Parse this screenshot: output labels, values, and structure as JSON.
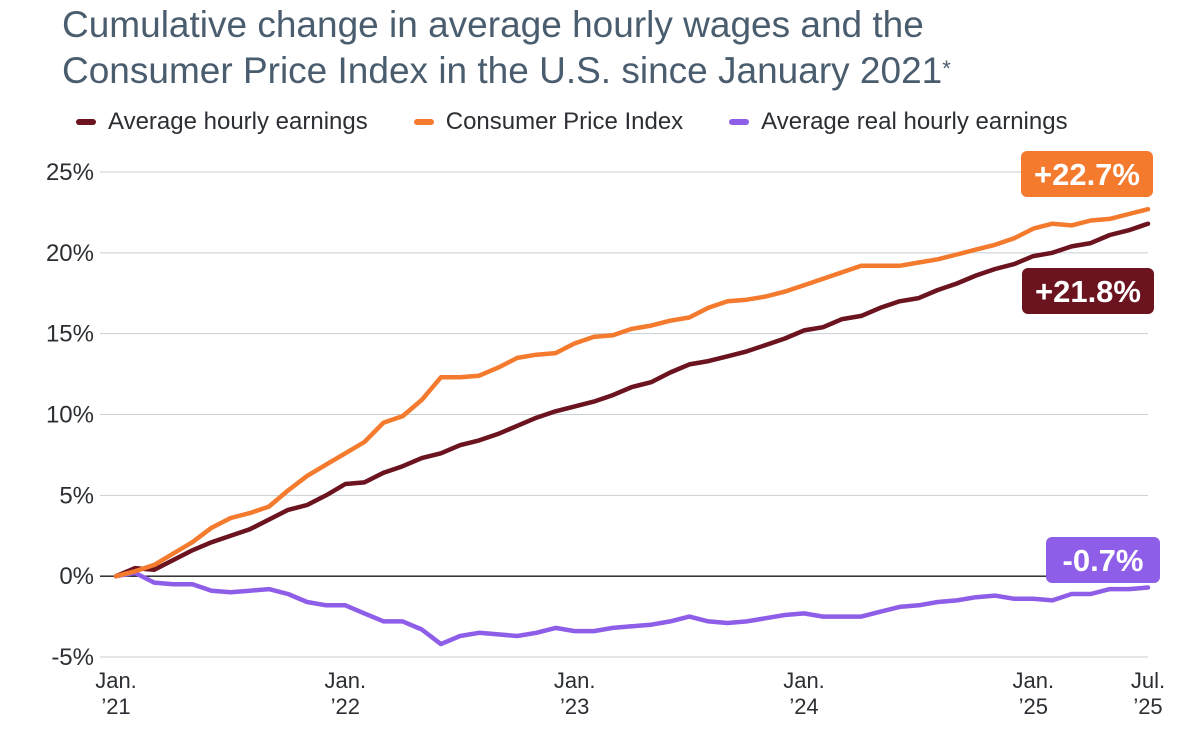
{
  "title_line1": "Cumulative change in average hourly wages and the",
  "title_line2": "Consumer Price Index in the U.S. since January 2021",
  "title_footnote_mark": "*",
  "chart_data": {
    "type": "line",
    "title": "Cumulative change in average hourly wages and the Consumer Price Index in the U.S. since January 2021*",
    "x_start": "2021-01",
    "x_end": "2025-07",
    "xlim": [
      "2021-01",
      "2025-07"
    ],
    "ylim": [
      -5,
      25
    ],
    "y_ticks": [
      "25%",
      "20%",
      "15%",
      "10%",
      "5%",
      "0%",
      "-5%"
    ],
    "y_tick_values": [
      25,
      20,
      15,
      10,
      5,
      0,
      -5
    ],
    "x_ticks": [
      {
        "month": "2021-01",
        "line1": "Jan.",
        "line2": "’21"
      },
      {
        "month": "2022-01",
        "line1": "Jan.",
        "line2": "’22"
      },
      {
        "month": "2023-01",
        "line1": "Jan.",
        "line2": "’23"
      },
      {
        "month": "2024-01",
        "line1": "Jan.",
        "line2": "’24"
      },
      {
        "month": "2025-01",
        "line1": "Jan.",
        "line2": "’25"
      },
      {
        "month": "2025-07",
        "line1": "Jul.",
        "line2": "’25"
      }
    ],
    "grid": true,
    "legend_position": "top-left",
    "series": [
      {
        "name": "Average hourly earnings",
        "color": "#6b1420",
        "end_label": "+21.8%",
        "values": [
          0,
          0.5,
          0.4,
          1.0,
          1.6,
          2.1,
          2.5,
          2.9,
          3.5,
          4.1,
          4.4,
          5.0,
          5.7,
          5.8,
          6.4,
          6.8,
          7.3,
          7.6,
          8.1,
          8.4,
          8.8,
          9.3,
          9.8,
          10.2,
          10.5,
          10.8,
          11.2,
          11.7,
          12.0,
          12.6,
          13.1,
          13.3,
          13.6,
          13.9,
          14.3,
          14.7,
          15.2,
          15.4,
          15.9,
          16.1,
          16.6,
          17.0,
          17.2,
          17.7,
          18.1,
          18.6,
          19.0,
          19.3,
          19.8,
          20.0,
          20.4,
          20.6,
          21.1,
          21.4,
          21.8
        ]
      },
      {
        "name": "Consumer Price Index",
        "color": "#f47a2e",
        "end_label": "+22.7%",
        "values": [
          0,
          0.3,
          0.7,
          1.4,
          2.1,
          3.0,
          3.6,
          3.9,
          4.3,
          5.3,
          6.2,
          6.9,
          7.6,
          8.3,
          9.5,
          9.9,
          10.9,
          12.3,
          12.3,
          12.4,
          12.9,
          13.5,
          13.7,
          13.8,
          14.4,
          14.8,
          14.9,
          15.3,
          15.5,
          15.8,
          16.0,
          16.6,
          17.0,
          17.1,
          17.3,
          17.6,
          18.0,
          18.4,
          18.8,
          19.2,
          19.2,
          19.2,
          19.4,
          19.6,
          19.9,
          20.2,
          20.5,
          20.9,
          21.5,
          21.8,
          21.7,
          22.0,
          22.1,
          22.4,
          22.7
        ]
      },
      {
        "name": "Average real hourly earnings",
        "color": "#8e5ee8",
        "end_label": "-0.7%",
        "values": [
          0,
          0.2,
          -0.4,
          -0.5,
          -0.5,
          -0.9,
          -1.0,
          -0.9,
          -0.8,
          -1.1,
          -1.6,
          -1.8,
          -1.8,
          -2.3,
          -2.8,
          -2.8,
          -3.3,
          -4.2,
          -3.7,
          -3.5,
          -3.6,
          -3.7,
          -3.5,
          -3.2,
          -3.4,
          -3.4,
          -3.2,
          -3.1,
          -3.0,
          -2.8,
          -2.5,
          -2.8,
          -2.9,
          -2.8,
          -2.6,
          -2.4,
          -2.3,
          -2.5,
          -2.5,
          -2.5,
          -2.2,
          -1.9,
          -1.8,
          -1.6,
          -1.5,
          -1.3,
          -1.2,
          -1.4,
          -1.4,
          -1.5,
          -1.1,
          -1.1,
          -0.8,
          -0.8,
          -0.7
        ]
      }
    ]
  }
}
